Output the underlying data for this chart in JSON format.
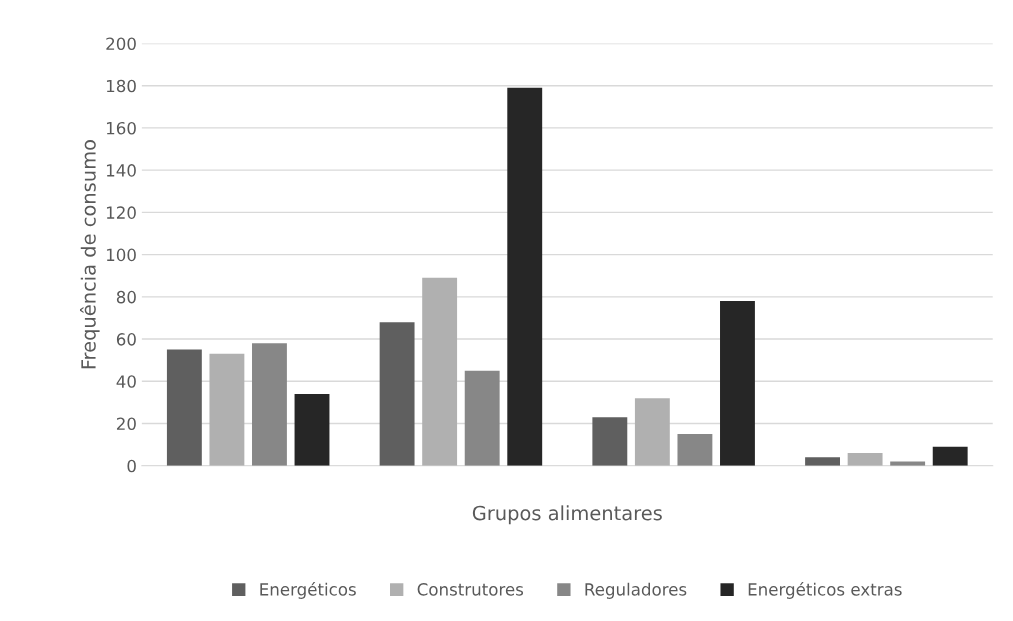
{
  "chart_data": {
    "type": "bar",
    "xlabel": "Grupos alimentares",
    "ylabel": "Frequência de consumo",
    "categories": [
      null,
      null,
      null,
      null
    ],
    "series": [
      {
        "name": "Energéticos",
        "color": "#5f5f5f",
        "values": [
          55,
          68,
          23,
          4
        ]
      },
      {
        "name": "Construtores",
        "color": "#b0b0b0",
        "values": [
          53,
          89,
          32,
          6
        ]
      },
      {
        "name": "Reguladores",
        "color": "#878787",
        "values": [
          58,
          45,
          15,
          2
        ]
      },
      {
        "name": "Energéticos extras",
        "color": "#262626",
        "values": [
          34,
          179,
          78,
          9
        ]
      }
    ],
    "ylim": [
      0,
      200
    ],
    "yticks": [
      0,
      20,
      40,
      60,
      80,
      100,
      120,
      140,
      160,
      180,
      200
    ],
    "grid": "y",
    "legend": "bottom"
  }
}
